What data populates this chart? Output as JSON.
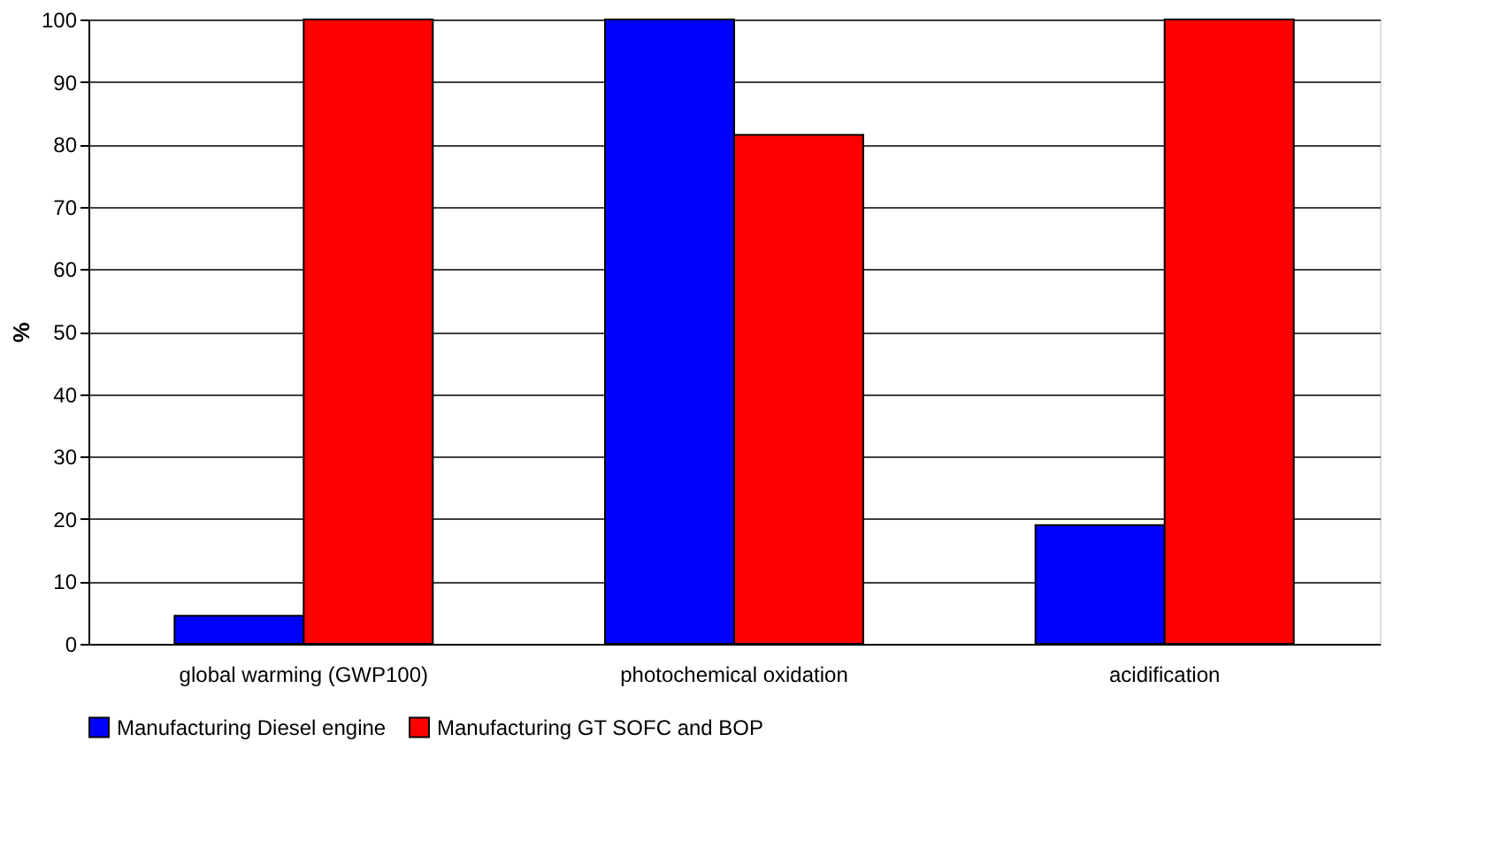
{
  "chart_data": {
    "type": "bar",
    "ylabel": "%",
    "categories": [
      "global warming (GWP100)",
      "photochemical oxidation",
      "acidification"
    ],
    "series": [
      {
        "name": "Manufacturing Diesel engine",
        "color": "#0000ff",
        "values": [
          4.5,
          100,
          19
        ]
      },
      {
        "name": "Manufacturing GT SOFC and BOP",
        "color": "#ff0000",
        "values": [
          100,
          81.5,
          100
        ]
      }
    ],
    "ylim": [
      0,
      100
    ],
    "yticks": [
      0,
      10,
      20,
      30,
      40,
      50,
      60,
      70,
      80,
      90,
      100
    ],
    "grid": "y",
    "legend": "bottom"
  }
}
